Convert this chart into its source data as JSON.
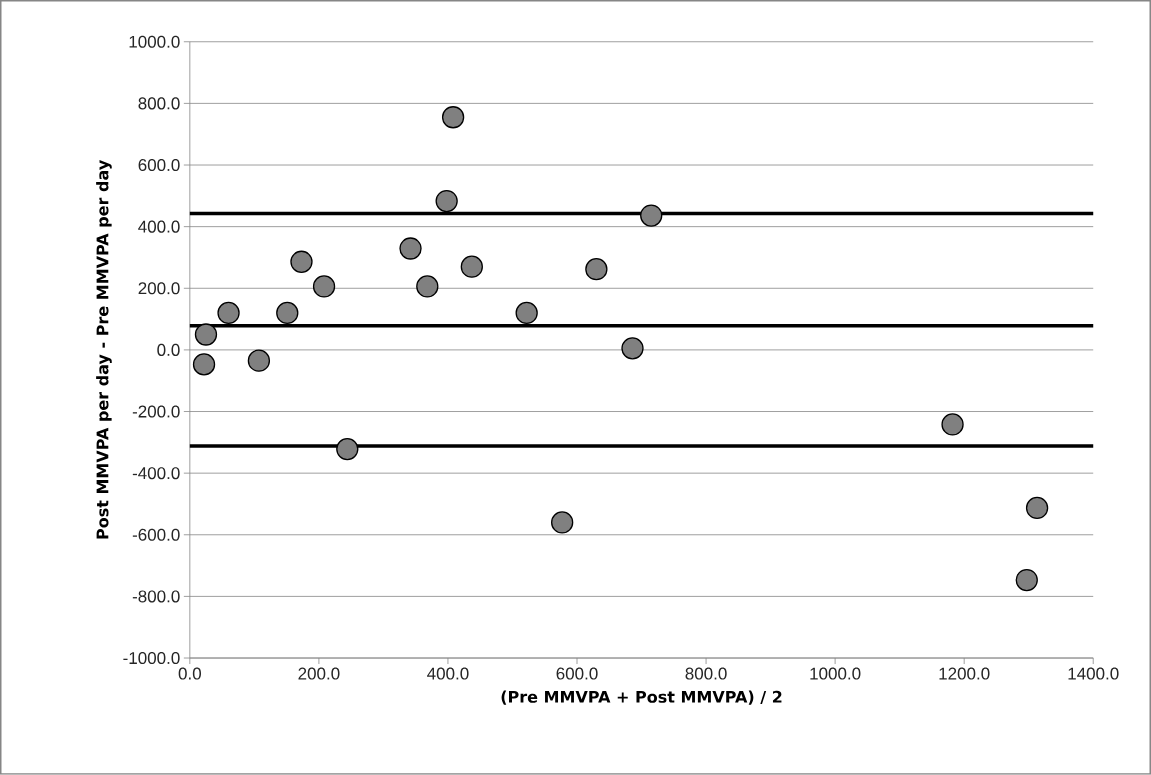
{
  "chart_data": {
    "type": "scatter",
    "xlabel": "(Pre MMVPA + Post MMVPA) / 2",
    "ylabel": "Post MMVPA per day - Pre MMVPA per day",
    "x": [
      22,
      25,
      60,
      107,
      151,
      173,
      208,
      244,
      342,
      368,
      398,
      408,
      437,
      522,
      577,
      630,
      686,
      715,
      1182,
      1297,
      1313
    ],
    "series": [
      {
        "color": "#000000",
        "values": [
          -47,
          50,
          120,
          -35,
          120,
          286,
          206,
          -322,
          329,
          206,
          483,
          755,
          270,
          120,
          -560,
          262,
          5,
          436,
          -242,
          -747,
          -513
        ]
      }
    ],
    "marker": "circle",
    "xlim": [
      0,
      1400
    ],
    "ylim": [
      -1000,
      1000
    ],
    "xticks": [
      {
        "value": 0,
        "label": "0.0"
      },
      {
        "value": 200,
        "label": "200.0"
      },
      {
        "value": 400,
        "label": "400.0"
      },
      {
        "value": 600,
        "label": "600.0"
      },
      {
        "value": 800,
        "label": "800.0"
      },
      {
        "value": 1000,
        "label": "1000.0"
      },
      {
        "value": 1200,
        "label": "1200.0"
      },
      {
        "value": 1400,
        "label": "1400.0"
      }
    ],
    "yticks": [
      {
        "value": -1000,
        "label": "-1000.0"
      },
      {
        "value": -800,
        "label": "-800.0"
      },
      {
        "value": -600,
        "label": "-600.0"
      },
      {
        "value": -400,
        "label": "-400.0"
      },
      {
        "value": -200,
        "label": "-200.0"
      },
      {
        "value": 0,
        "label": "0.0"
      },
      {
        "value": 200,
        "label": "200.0"
      },
      {
        "value": 400,
        "label": "400.0"
      },
      {
        "value": 600,
        "label": "600.0"
      },
      {
        "value": 800,
        "label": "800.0"
      },
      {
        "value": 1000,
        "label": "1000.0"
      }
    ],
    "grid": "y",
    "ref_lines": [
      {
        "axis": "y",
        "value": 443,
        "color": "#000000"
      },
      {
        "axis": "y",
        "value": 78,
        "color": "#000000"
      },
      {
        "axis": "y",
        "value": -312,
        "color": "#000000"
      }
    ]
  }
}
